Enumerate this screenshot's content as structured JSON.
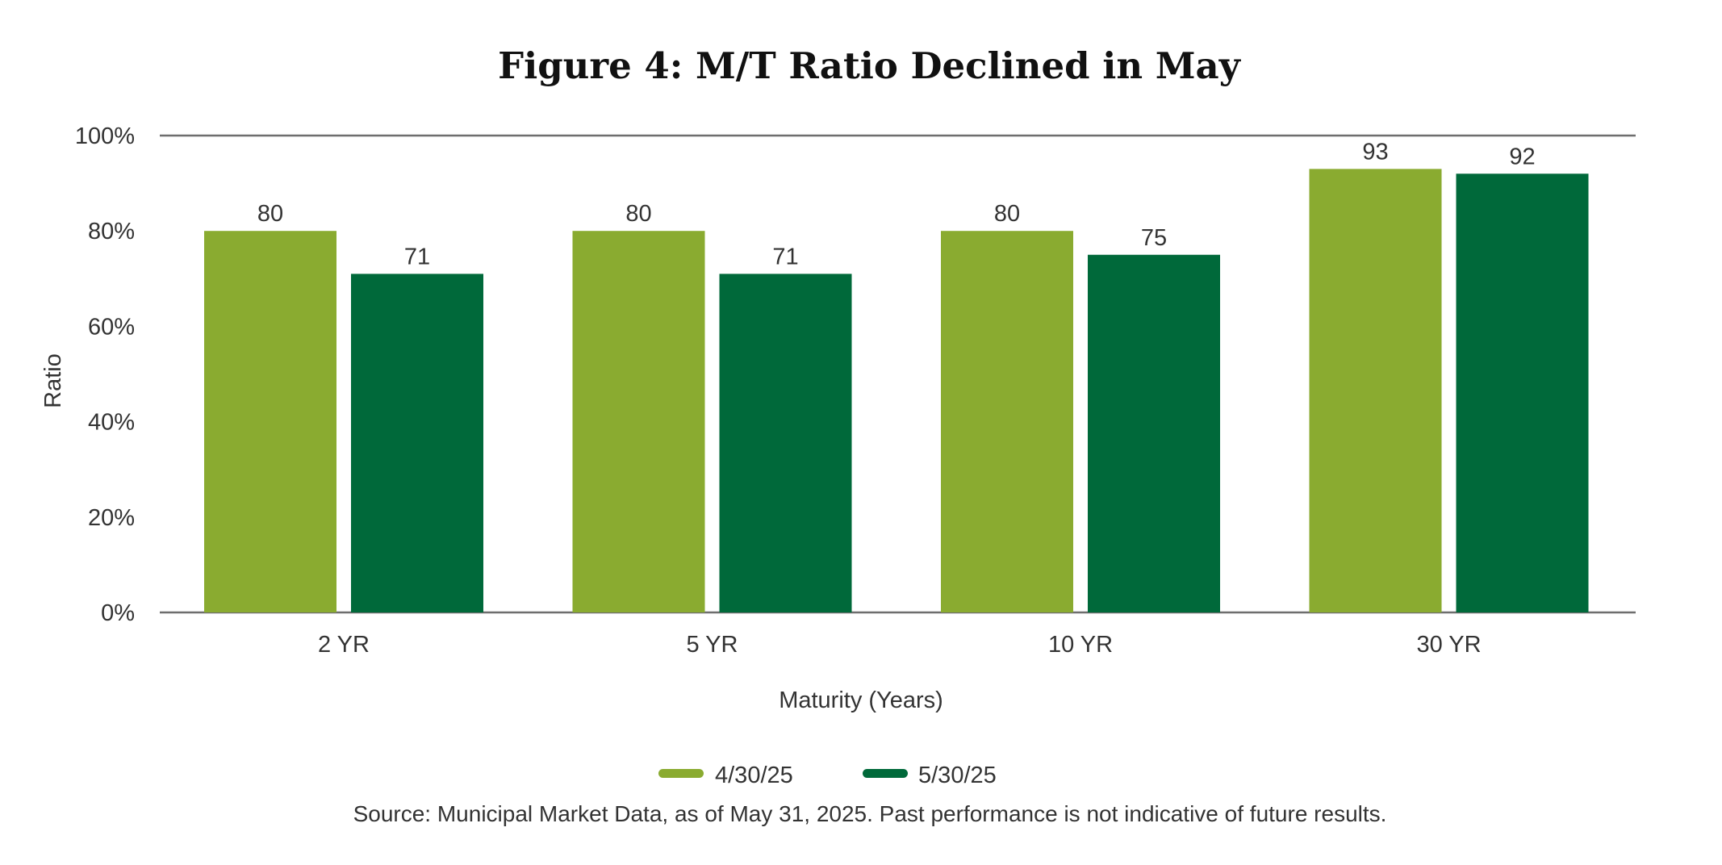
{
  "chart_data": {
    "type": "bar",
    "title": "Figure 4: M/T Ratio Declined in May",
    "xlabel": "Maturity (Years)",
    "ylabel": "Ratio",
    "ylim": [
      0,
      100
    ],
    "yticks": [
      0,
      20,
      40,
      60,
      80,
      100
    ],
    "ytick_labels": [
      "0%",
      "20%",
      "40%",
      "60%",
      "80%",
      "100%"
    ],
    "categories": [
      "2 YR",
      "5 YR",
      "10 YR",
      "30 YR"
    ],
    "series": [
      {
        "name": "4/30/25",
        "color": "#8aab30",
        "values": [
          80,
          80,
          80,
          93
        ]
      },
      {
        "name": "5/30/25",
        "color": "#00693a",
        "values": [
          71,
          71,
          75,
          92
        ]
      }
    ],
    "data_labels": true,
    "grid": false,
    "legend_position": "bottom-center",
    "source": "Source: Municipal Market Data, as of May 31, 2025. Past performance is not indicative of future results."
  }
}
